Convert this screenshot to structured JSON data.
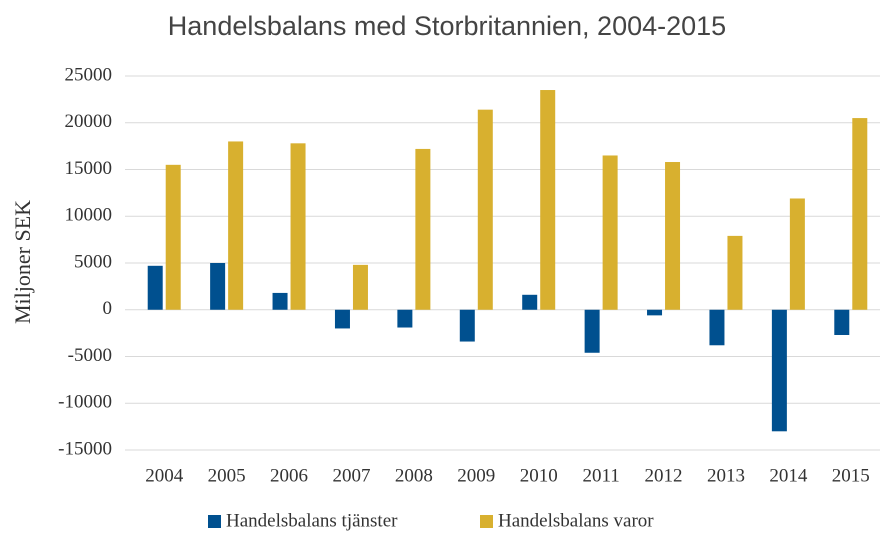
{
  "chart_data": {
    "type": "bar",
    "title": "Handelsbalans med Storbritannien, 2004-2015",
    "y_label": "Miljoner SEK",
    "categories": [
      "2004",
      "2005",
      "2006",
      "2007",
      "2008",
      "2009",
      "2010",
      "2011",
      "2012",
      "2013",
      "2014",
      "2015"
    ],
    "series": [
      {
        "name": "Handelsbalans tjänster",
        "color": "#00508f",
        "values": [
          4700,
          5000,
          1800,
          -2000,
          -1900,
          -3400,
          1600,
          -4600,
          -600,
          -3800,
          -13000,
          -2700
        ]
      },
      {
        "name": "Handelsbalans varor",
        "color": "#d8b02f",
        "values": [
          15500,
          18000,
          17800,
          4800,
          17200,
          21400,
          23500,
          16500,
          15800,
          7900,
          11900,
          20500
        ]
      }
    ],
    "ylim": [
      -15000,
      25000
    ],
    "yticks": [
      25000,
      20000,
      15000,
      10000,
      5000,
      0,
      -5000,
      -10000,
      -15000
    ],
    "grid": true,
    "legend": "bottom"
  }
}
